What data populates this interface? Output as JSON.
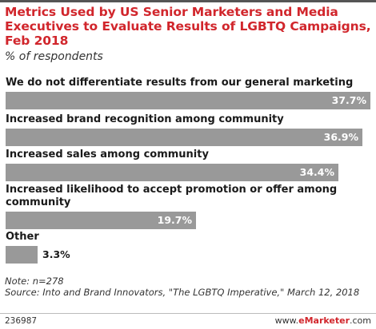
{
  "header": {
    "title": "Metrics Used by US Senior Marketers and Media Executives to Evaluate Results of LGBTQ Campaigns, Feb 2018",
    "subtitle": "% of respondents"
  },
  "chart_data": {
    "type": "bar",
    "orientation": "horizontal",
    "categories": [
      "We do not differentiate results from our general marketing",
      "Increased brand recognition among community",
      "Increased sales among community",
      "Increased likelihood to accept promotion or offer among community",
      "Other"
    ],
    "values": [
      37.7,
      36.9,
      34.4,
      19.7,
      3.3
    ],
    "value_labels": [
      "37.7%",
      "36.9%",
      "34.4%",
      "19.7%",
      "3.3%"
    ],
    "unit": "%",
    "bar_color": "#999999",
    "xlim": [
      0,
      37.7
    ],
    "grid": false,
    "legend": "none"
  },
  "footer": {
    "note": "Note: n=278",
    "source": "Source: Into and Brand Innovators, \"The LGBTQ Imperative,\" March 12, 2018",
    "chart_id": "236987",
    "brand_prefix": "www.",
    "brand_name": "eMarketer",
    "brand_suffix": ".com"
  },
  "colors": {
    "title": "#d1262c",
    "bar": "#999999",
    "text": "#1a1a1a"
  }
}
